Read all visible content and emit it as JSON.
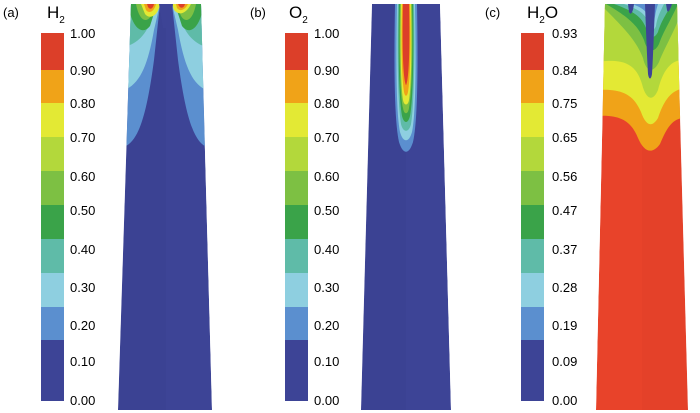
{
  "colors": {
    "scale": [
      "#3d4496",
      "#5b8fcf",
      "#8ecfe0",
      "#5fbba8",
      "#3aa349",
      "#7dc043",
      "#e3e934",
      "#f0a318",
      "#dc3f29",
      "#e8432a"
    ],
    "background": "#3d4496",
    "water_bulk": "#e8432a"
  },
  "panels": [
    {
      "label": "(a)",
      "species_main": "H",
      "species_sub": "2",
      "species_tail": "",
      "ticks": [
        "1.00",
        "0.90",
        "0.80",
        "0.70",
        "0.60",
        "0.50",
        "0.40",
        "0.30",
        "0.20",
        "0.10",
        "0.00"
      ]
    },
    {
      "label": "(b)",
      "species_main": "O",
      "species_sub": "2",
      "species_tail": "",
      "ticks": [
        "1.00",
        "0.90",
        "0.80",
        "0.70",
        "0.60",
        "0.50",
        "0.40",
        "0.30",
        "0.20",
        "0.10",
        "0.00"
      ]
    },
    {
      "label": "(c)",
      "species_main": "H",
      "species_sub": "2",
      "species_tail": "O",
      "ticks": [
        "0.93",
        "0.84",
        "0.75",
        "0.65",
        "0.56",
        "0.47",
        "0.37",
        "0.28",
        "0.19",
        "0.09",
        "0.00"
      ]
    }
  ]
}
